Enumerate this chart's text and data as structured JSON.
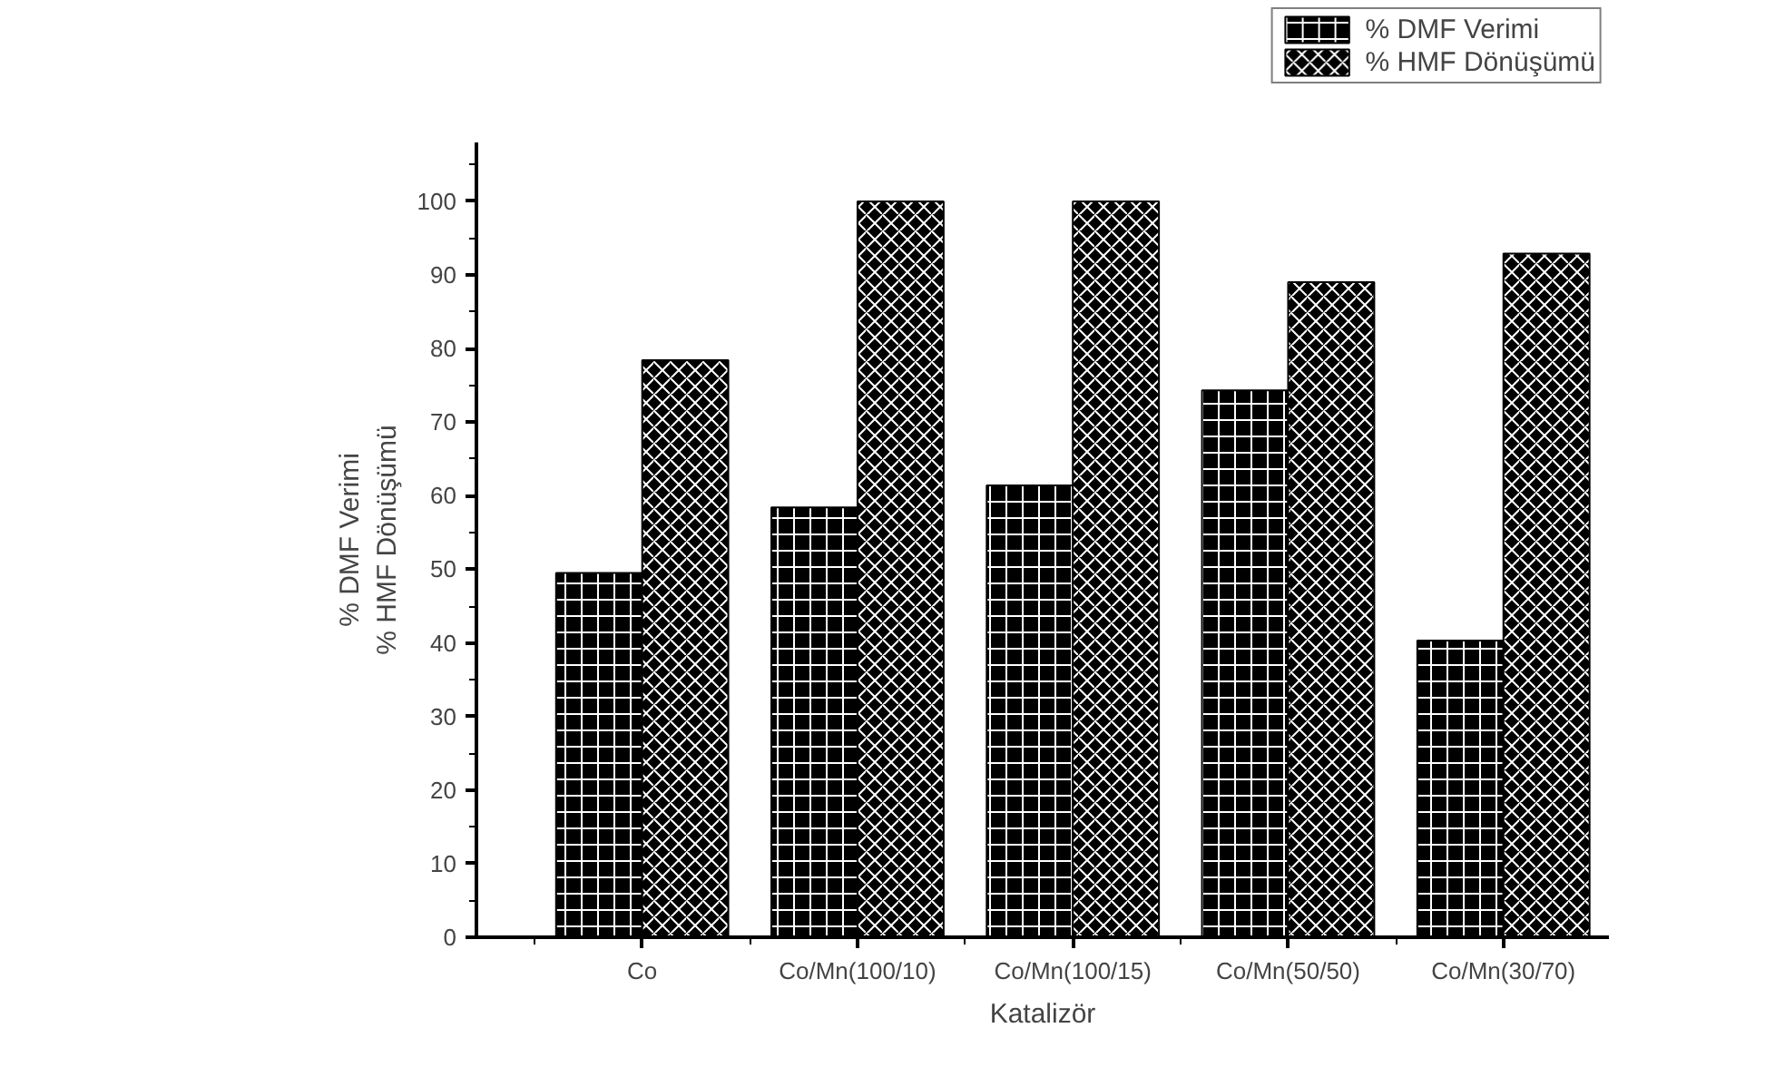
{
  "chart_data": {
    "type": "bar",
    "categories": [
      "Co",
      "Co/Mn(100/10)",
      "Co/Mn(100/15)",
      "Co/Mn(50/50)",
      "Co/Mn(30/70)"
    ],
    "series": [
      {
        "name": "% DMF Verimi",
        "color": "#000000",
        "values": [
          49.5,
          58.4,
          61.4,
          74.3,
          40.3
        ]
      },
      {
        "name": "% HMF Dönüşümü",
        "color": "#000000",
        "values": [
          78.4,
          100,
          100,
          89.0,
          92.9
        ]
      }
    ],
    "xlabel": "Katalizör",
    "ylabel": "% DMF Verimi\n% HMF Dönüşümü",
    "ylim": [
      0,
      108
    ],
    "yticks": [
      0,
      10,
      20,
      30,
      40,
      50,
      60,
      70,
      80,
      90,
      100
    ],
    "grid": false,
    "legend": "top right"
  }
}
